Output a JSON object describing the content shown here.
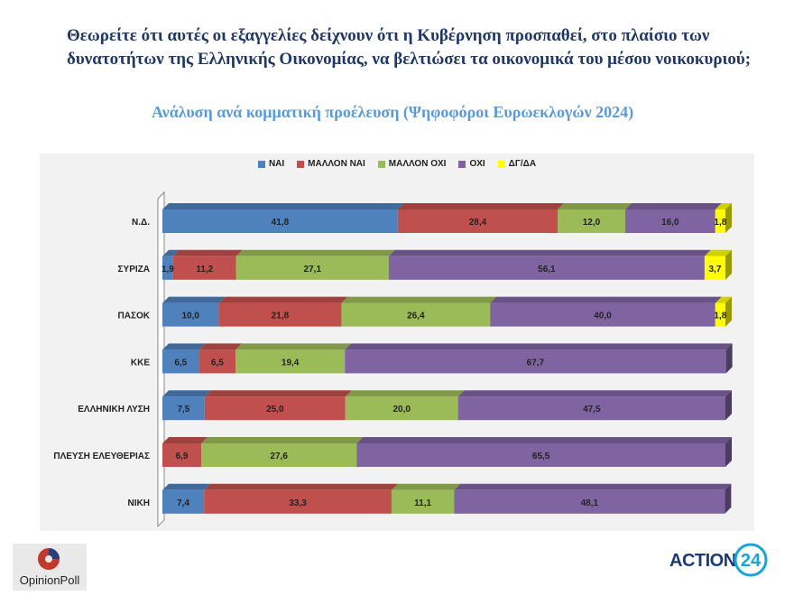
{
  "title": "Θεωρείτε ότι αυτές οι εξαγγελίες δείχνουν ότι η Κυβέρνηση προσπαθεί, στο πλαίσιο των δυνατοτήτων της Ελληνικής Οικονομίας, να βελτιώσει τα οικονομικά του μέσου νοικοκυριού;",
  "subtitle": "Ανάλυση ανά κομματική προέλευση (Ψηφοφόροι Ευρωεκλογών 2024)",
  "logos": {
    "left": "OpinionPoll",
    "right_text": "ACTION",
    "right_number": "24"
  },
  "chart_data": {
    "type": "bar",
    "orientation": "horizontal",
    "stacked": true,
    "xlim": [
      0,
      100
    ],
    "categories": [
      "Ν.Δ.",
      "ΣΥΡΙΖΑ",
      "ΠΑΣΟΚ",
      "ΚΚΕ",
      "ΕΛΛΗΝΙΚΗ ΛΥΣΗ",
      "ΠΛΕΥΣΗ ΕΛΕΥΘΕΡΙΑΣ",
      "ΝΙΚΗ"
    ],
    "series": [
      {
        "name": "ΝΑΙ",
        "color": "#4f81bd",
        "values": [
          41.8,
          1.9,
          10.0,
          6.5,
          7.5,
          null,
          7.4
        ],
        "labels": [
          "41,8",
          "1,9",
          "10,0",
          "6,5",
          "7,5",
          "",
          "7,4"
        ]
      },
      {
        "name": "ΜΑΛΛΟΝ ΝΑΙ",
        "color": "#c0504d",
        "values": [
          28.4,
          11.2,
          21.8,
          6.5,
          25.0,
          6.9,
          33.3
        ],
        "labels": [
          "28,4",
          "11,2",
          "21,8",
          "6,5",
          "25,0",
          "6,9",
          "33,3"
        ]
      },
      {
        "name": "ΜΑΛΛΟΝ ΟΧΙ",
        "color": "#9bbb59",
        "values": [
          12.0,
          27.1,
          26.4,
          19.4,
          20.0,
          27.6,
          11.1
        ],
        "labels": [
          "12,0",
          "27,1",
          "26,4",
          "19,4",
          "20,0",
          "27,6",
          "11,1"
        ]
      },
      {
        "name": "ΟΧΙ",
        "color": "#8064a2",
        "values": [
          16.0,
          56.1,
          40.0,
          67.7,
          47.5,
          65.5,
          48.1
        ],
        "labels": [
          "16,0",
          "56,1",
          "40,0",
          "67,7",
          "47,5",
          "65,5",
          "48,1"
        ]
      },
      {
        "name": "ΔΓ/ΔΑ",
        "color": "#ffff00",
        "values": [
          1.8,
          3.7,
          1.8,
          null,
          null,
          null,
          null
        ],
        "labels": [
          "1,8",
          "3,7",
          "1,8",
          "",
          "",
          "",
          ""
        ]
      }
    ]
  }
}
